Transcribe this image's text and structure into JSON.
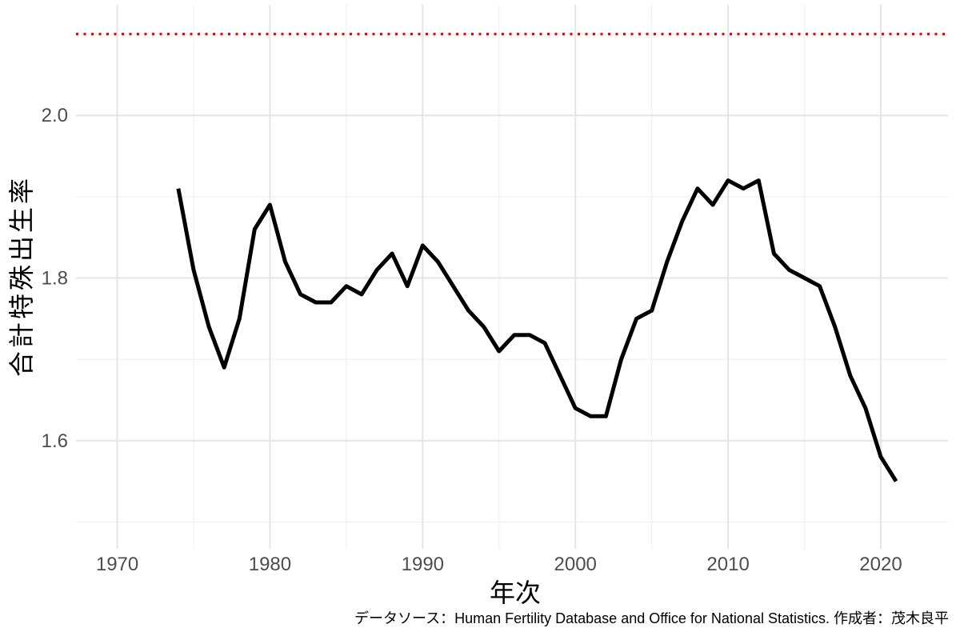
{
  "chart_data": {
    "type": "line",
    "title": "",
    "xlabel": "年次",
    "ylabel": "合計特殊出生率",
    "x": [
      1974,
      1975,
      1976,
      1977,
      1978,
      1979,
      1980,
      1981,
      1982,
      1983,
      1984,
      1985,
      1986,
      1987,
      1988,
      1989,
      1990,
      1991,
      1992,
      1993,
      1994,
      1995,
      1996,
      1997,
      1998,
      1999,
      2000,
      2001,
      2002,
      2003,
      2004,
      2005,
      2006,
      2007,
      2008,
      2009,
      2010,
      2011,
      2012,
      2013,
      2014,
      2015,
      2016,
      2017,
      2018,
      2019,
      2020,
      2021
    ],
    "series": [
      {
        "name": "合計特殊出生率",
        "color": "#000000",
        "values": [
          1.91,
          1.81,
          1.74,
          1.69,
          1.75,
          1.86,
          1.89,
          1.82,
          1.78,
          1.77,
          1.77,
          1.79,
          1.78,
          1.81,
          1.83,
          1.79,
          1.84,
          1.82,
          1.79,
          1.76,
          1.74,
          1.71,
          1.73,
          1.73,
          1.72,
          1.68,
          1.64,
          1.63,
          1.63,
          1.7,
          1.75,
          1.76,
          1.82,
          1.87,
          1.91,
          1.89,
          1.92,
          1.91,
          1.92,
          1.83,
          1.81,
          1.8,
          1.79,
          1.74,
          1.68,
          1.64,
          1.58,
          1.55
        ]
      }
    ],
    "reference_line": {
      "value": 2.1,
      "color": "#ff0000",
      "linestyle": "dotted"
    },
    "x_ticks": [
      1970,
      1980,
      1990,
      2000,
      2010,
      2020
    ],
    "x_minor_ticks": [
      1975,
      1985,
      1995,
      2005,
      2015
    ],
    "y_ticks": [
      1.6,
      1.8,
      2.0
    ],
    "y_minor_ticks": [
      1.5,
      1.7,
      1.9,
      2.1
    ],
    "xlim": [
      1967.3,
      2024.4
    ],
    "ylim": [
      1.467,
      2.136
    ],
    "grid": true,
    "legend": false
  },
  "caption": "データソース：Human Fertility Database and Office for National Statistics. 作成者：茂木良平"
}
